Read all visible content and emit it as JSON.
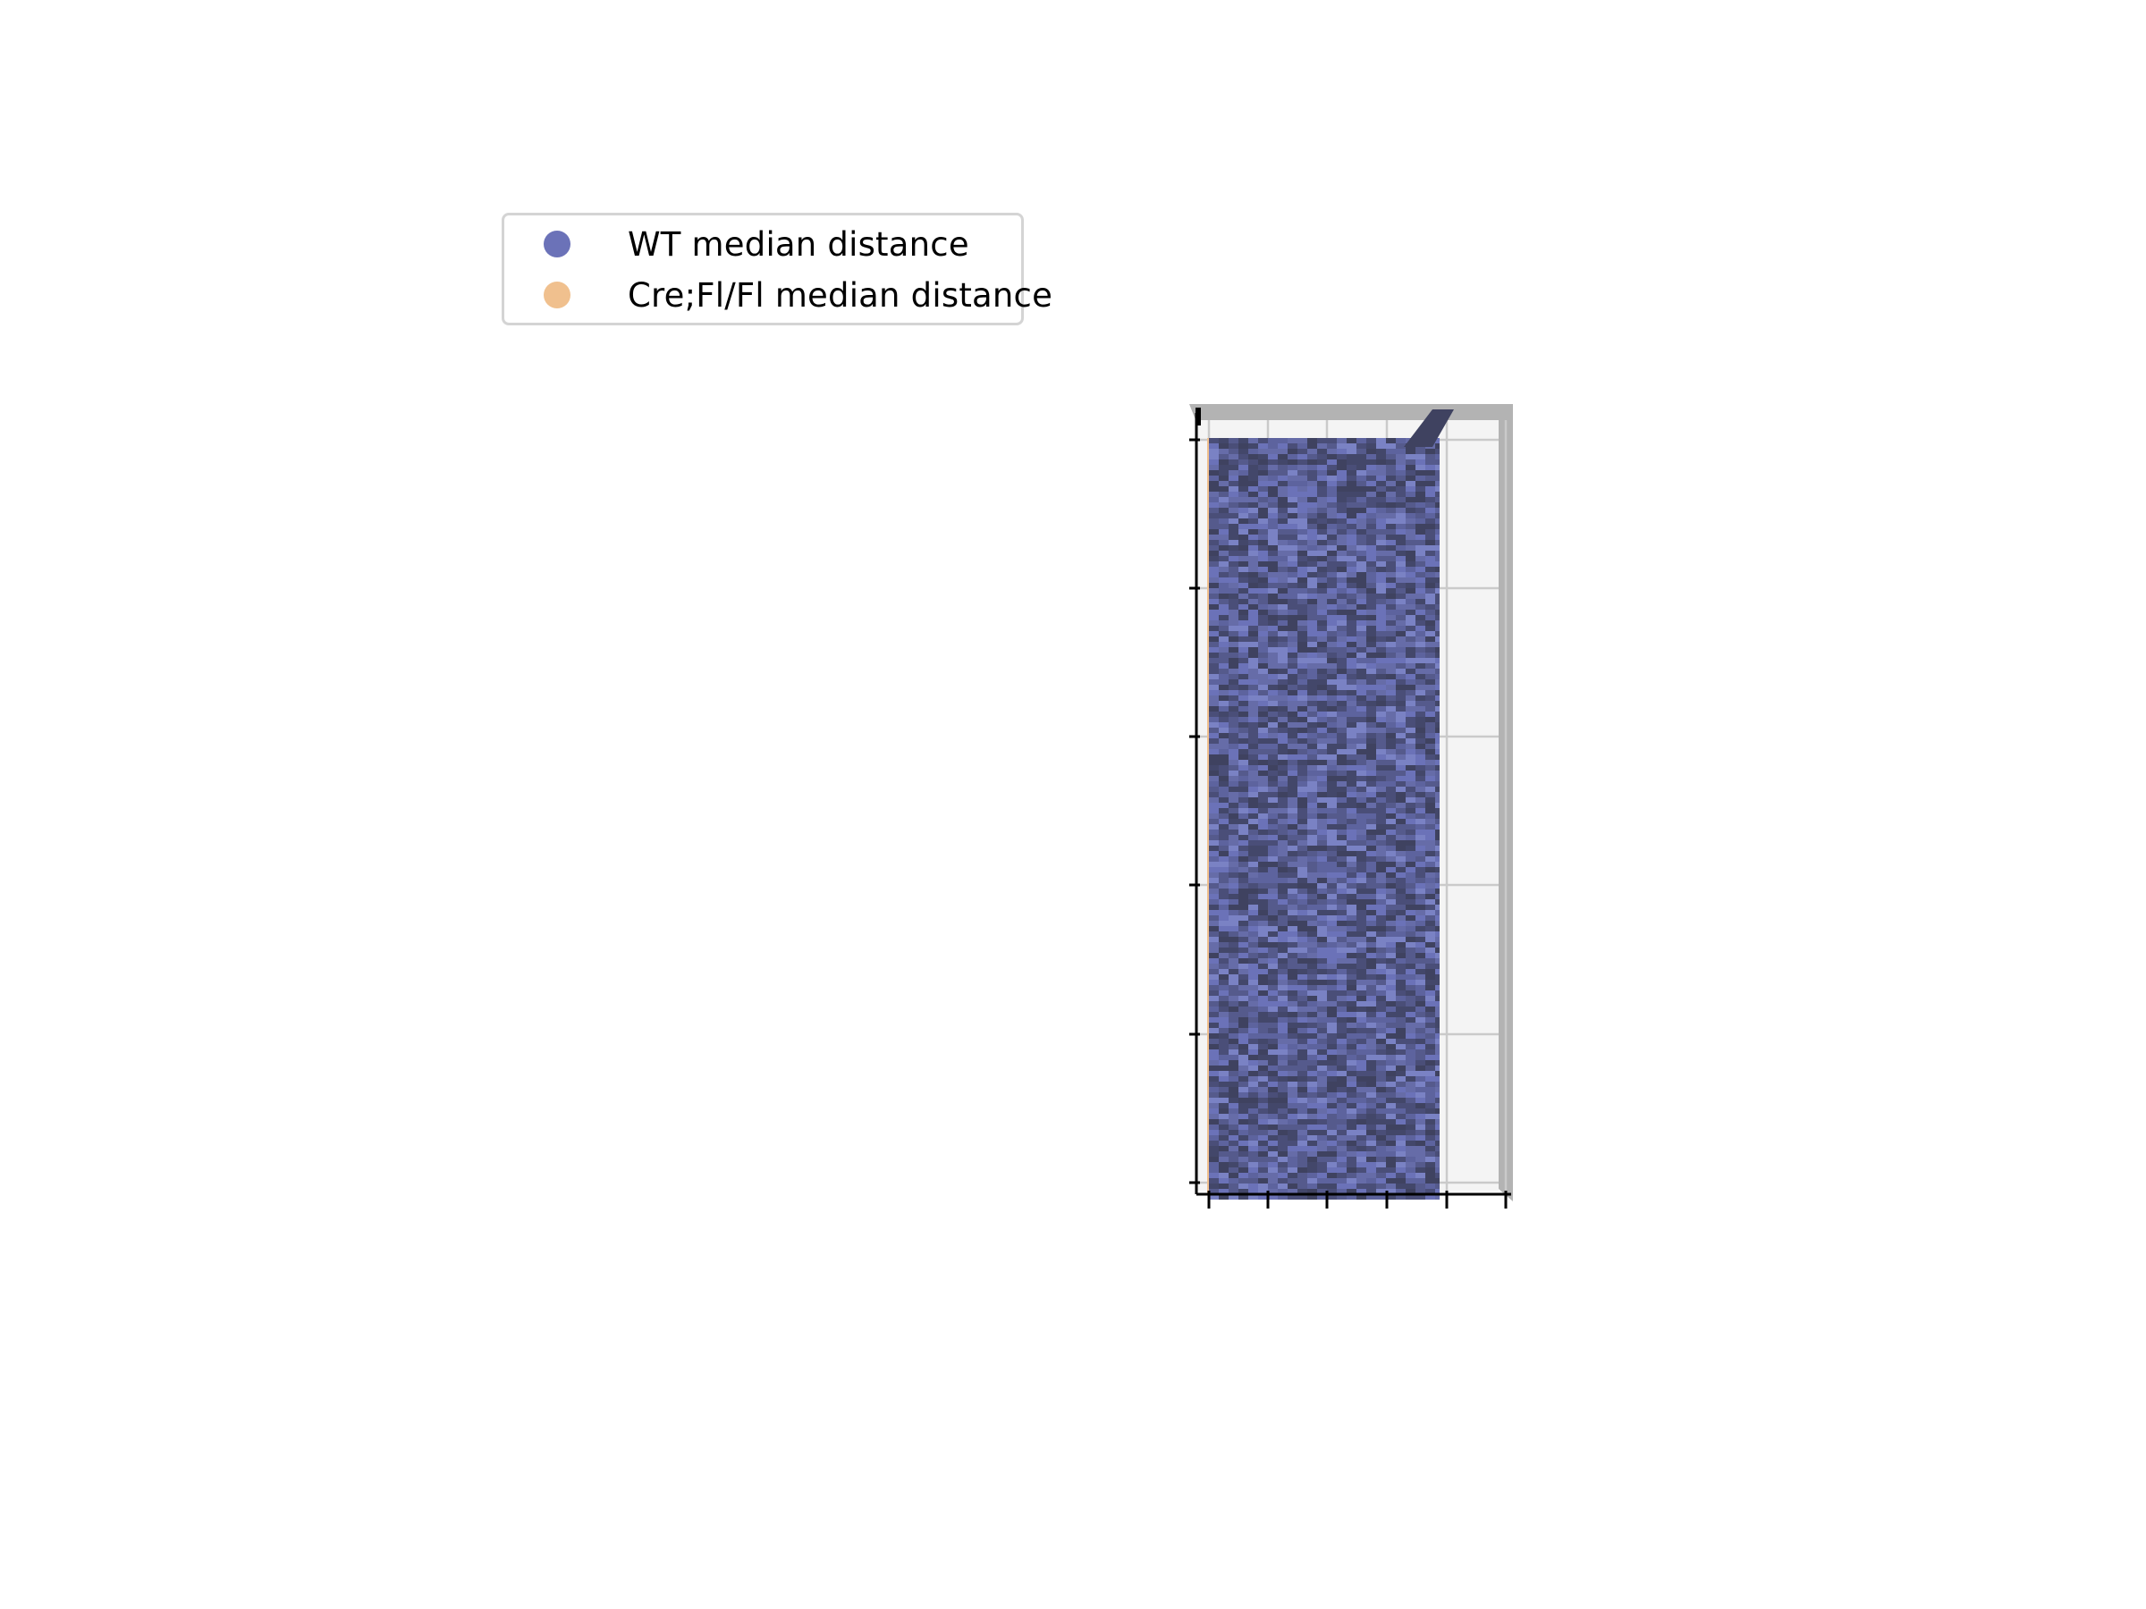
{
  "chart_data": {
    "type": "surface3d",
    "series": [
      {
        "name": "WT median distance",
        "color": "#6b72b8"
      },
      {
        "name": "Cre;Fl/Fl median distance",
        "color": "#f0c08e"
      }
    ],
    "legend_placement": "upper-left",
    "grid": true,
    "tick_labels_visible": false,
    "x_ticks": 6,
    "y_ticks": 6,
    "view": "top-down"
  }
}
